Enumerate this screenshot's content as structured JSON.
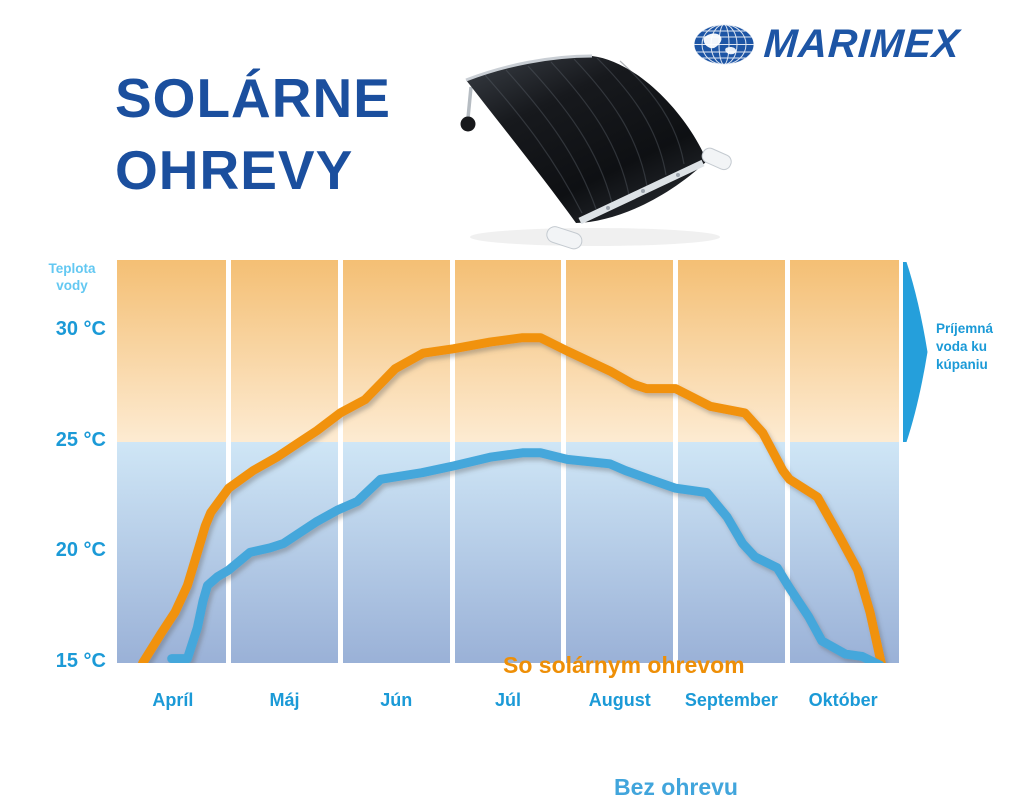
{
  "header": {
    "title_line1": "SOLÁRNE",
    "title_line2": "OHREVY",
    "title_color": "#1b4f9e",
    "brand": {
      "name": "MARIMEX",
      "color": "#1d55a5",
      "logo_icon": "globe-grid-icon"
    }
  },
  "product_image": {
    "alt": "curved black solar pool heater panel"
  },
  "chart_data": {
    "type": "line",
    "title": "Solárne ohrevy — teplota vody",
    "y_axis_title": "Teplota\nvody",
    "categories": [
      "Apríl",
      "Máj",
      "Jún",
      "Júl",
      "August",
      "September",
      "Október"
    ],
    "y_ticks": [
      {
        "value": 30,
        "label": "30 °C"
      },
      {
        "value": 25,
        "label": "25 °C"
      },
      {
        "value": 20,
        "label": "20 °C"
      },
      {
        "value": 15,
        "label": "15 °C"
      }
    ],
    "ylim": [
      15,
      33.2
    ],
    "grid": "vertical-white-month-separators",
    "background_zones": [
      {
        "name": "warm",
        "above_c": 25,
        "color_top": "#f4bf74",
        "color_bottom": "#fdebd2"
      },
      {
        "name": "cool",
        "below_c": 25,
        "color_top": "#cfe6f6",
        "color_bottom": "#9ab1d7"
      }
    ],
    "series": [
      {
        "name": "So solárnym ohrevom",
        "label": "So solárnym ohrevom",
        "color": "#f1920b",
        "label_color": "#ee8f07",
        "monthly_estimates_c": {
          "Apríl": 18.5,
          "Máj": 24.3,
          "Jún": 28.3,
          "Júl": 29.6,
          "August": 28.2,
          "September": 26.4,
          "Október": 20.7
        },
        "points_month_temp": [
          [
            0.23,
            15.0
          ],
          [
            0.39,
            16.3
          ],
          [
            0.52,
            17.3
          ],
          [
            0.63,
            18.5
          ],
          [
            0.72,
            20.0
          ],
          [
            0.79,
            21.2
          ],
          [
            0.84,
            21.8
          ],
          [
            1.0,
            22.9
          ],
          [
            1.22,
            23.7
          ],
          [
            1.43,
            24.3
          ],
          [
            1.61,
            24.9
          ],
          [
            1.79,
            25.5
          ],
          [
            2.0,
            26.3
          ],
          [
            2.22,
            26.9
          ],
          [
            2.49,
            28.3
          ],
          [
            2.74,
            29.0
          ],
          [
            3.01,
            29.2
          ],
          [
            3.34,
            29.5
          ],
          [
            3.63,
            29.7
          ],
          [
            3.79,
            29.7
          ],
          [
            4.03,
            29.1
          ],
          [
            4.41,
            28.2
          ],
          [
            4.62,
            27.6
          ],
          [
            4.74,
            27.4
          ],
          [
            5.0,
            27.4
          ],
          [
            5.31,
            26.6
          ],
          [
            5.62,
            26.3
          ],
          [
            5.78,
            25.4
          ],
          [
            5.96,
            23.7
          ],
          [
            6.02,
            23.3
          ],
          [
            6.27,
            22.5
          ],
          [
            6.47,
            20.7
          ],
          [
            6.63,
            19.2
          ],
          [
            6.74,
            17.3
          ],
          [
            6.85,
            14.8
          ]
        ]
      },
      {
        "name": "Bez ohrevu",
        "label": "Bez ohrevu",
        "color": "#45a7db",
        "label_color": "#41a5dc",
        "monthly_estimates_c": {
          "Apríl": 16.5,
          "Máj": 20.4,
          "Jún": 23.3,
          "Júl": 24.4,
          "August": 24.0,
          "September": 21.6,
          "Október": 16.0
        },
        "points_month_temp": [
          [
            0.49,
            15.2
          ],
          [
            0.63,
            15.2
          ],
          [
            0.72,
            16.6
          ],
          [
            0.77,
            17.8
          ],
          [
            0.81,
            18.5
          ],
          [
            0.9,
            18.9
          ],
          [
            1.0,
            19.2
          ],
          [
            1.19,
            20.0
          ],
          [
            1.37,
            20.2
          ],
          [
            1.49,
            20.4
          ],
          [
            1.61,
            20.8
          ],
          [
            1.79,
            21.4
          ],
          [
            1.97,
            21.9
          ],
          [
            2.15,
            22.3
          ],
          [
            2.36,
            23.3
          ],
          [
            2.73,
            23.6
          ],
          [
            3.01,
            23.9
          ],
          [
            3.34,
            24.3
          ],
          [
            3.63,
            24.5
          ],
          [
            3.79,
            24.5
          ],
          [
            4.03,
            24.2
          ],
          [
            4.41,
            24.0
          ],
          [
            4.55,
            23.7
          ],
          [
            4.77,
            23.3
          ],
          [
            5.0,
            22.9
          ],
          [
            5.28,
            22.7
          ],
          [
            5.46,
            21.6
          ],
          [
            5.6,
            20.4
          ],
          [
            5.71,
            19.8
          ],
          [
            5.91,
            19.3
          ],
          [
            6.02,
            18.4
          ],
          [
            6.19,
            17.1
          ],
          [
            6.31,
            16.0
          ],
          [
            6.52,
            15.4
          ],
          [
            6.67,
            15.3
          ],
          [
            6.83,
            14.9
          ]
        ]
      }
    ],
    "pleasant_zone": {
      "label": "Príjemná\nvoda ku\nkúpaniu",
      "threshold_c": 25,
      "color": "#259fdb"
    },
    "legend_position": "labels-inside-plot"
  }
}
